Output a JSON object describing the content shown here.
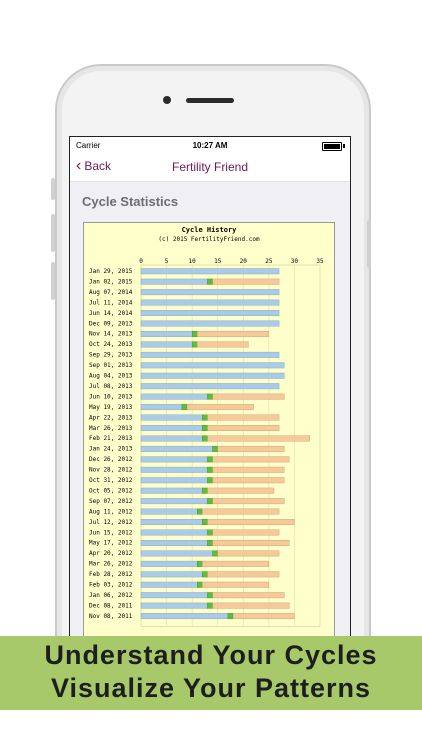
{
  "status_bar": {
    "carrier": "Carrier",
    "time": "10:27 AM"
  },
  "nav": {
    "back_label": "Back",
    "title": "Fertility Friend"
  },
  "section_heading": "Cycle Statistics",
  "chart_data": {
    "type": "bar",
    "title": "Cycle History",
    "subtitle": "(c) 2015 FertilityFriend.com",
    "x_ticks": [
      0,
      5,
      10,
      15,
      20,
      25,
      30,
      35
    ],
    "xlim": [
      0,
      35
    ],
    "colors": {
      "pre_ovulation": "#a9cbe8",
      "ovulation": "#5bbf3a",
      "post_ovulation": "#f5c99a",
      "background": "#ffffcc"
    },
    "cycles": [
      {
        "date": "Jan 29, 2015",
        "length": 27,
        "ovulation": null
      },
      {
        "date": "Jan 02, 2015",
        "length": 27,
        "ovulation": 13
      },
      {
        "date": "Aug 07, 2014",
        "length": 27,
        "ovulation": null
      },
      {
        "date": "Jul 11, 2014",
        "length": 27,
        "ovulation": null
      },
      {
        "date": "Jun 14, 2014",
        "length": 27,
        "ovulation": null
      },
      {
        "date": "Dec 09, 2013",
        "length": 27,
        "ovulation": null
      },
      {
        "date": "Nov 14, 2013",
        "length": 25,
        "ovulation": 10
      },
      {
        "date": "Oct 24, 2013",
        "length": 21,
        "ovulation": 10
      },
      {
        "date": "Sep 29, 2013",
        "length": 27,
        "ovulation": null
      },
      {
        "date": "Sep 01, 2013",
        "length": 28,
        "ovulation": null
      },
      {
        "date": "Aug 04, 2013",
        "length": 28,
        "ovulation": null
      },
      {
        "date": "Jul 08, 2013",
        "length": 27,
        "ovulation": null
      },
      {
        "date": "Jun 10, 2013",
        "length": 28,
        "ovulation": 13
      },
      {
        "date": "May 19, 2013",
        "length": 22,
        "ovulation": 8
      },
      {
        "date": "Apr 22, 2013",
        "length": 27,
        "ovulation": 12
      },
      {
        "date": "Mar 26, 2013",
        "length": 27,
        "ovulation": 12
      },
      {
        "date": "Feb 21, 2013",
        "length": 33,
        "ovulation": 12
      },
      {
        "date": "Jan 24, 2013",
        "length": 28,
        "ovulation": 14
      },
      {
        "date": "Dec 26, 2012",
        "length": 29,
        "ovulation": 13
      },
      {
        "date": "Nov 28, 2012",
        "length": 28,
        "ovulation": 13
      },
      {
        "date": "Oct 31, 2012",
        "length": 28,
        "ovulation": 13
      },
      {
        "date": "Oct 05, 2012",
        "length": 26,
        "ovulation": 12
      },
      {
        "date": "Sep 07, 2012",
        "length": 28,
        "ovulation": 13
      },
      {
        "date": "Aug 11, 2012",
        "length": 27,
        "ovulation": 11
      },
      {
        "date": "Jul 12, 2012",
        "length": 30,
        "ovulation": 12
      },
      {
        "date": "Jun 15, 2012",
        "length": 27,
        "ovulation": 13
      },
      {
        "date": "May 17, 2012",
        "length": 29,
        "ovulation": 13
      },
      {
        "date": "Apr 20, 2012",
        "length": 27,
        "ovulation": 14
      },
      {
        "date": "Mar 26, 2012",
        "length": 25,
        "ovulation": 11
      },
      {
        "date": "Feb 28, 2012",
        "length": 27,
        "ovulation": 12
      },
      {
        "date": "Feb 03, 2012",
        "length": 25,
        "ovulation": 11
      },
      {
        "date": "Jan 06, 2012",
        "length": 28,
        "ovulation": 13
      },
      {
        "date": "Dec 08, 2011",
        "length": 29,
        "ovulation": 13
      },
      {
        "date": "Nov 08, 2011",
        "length": 30,
        "ovulation": 17
      }
    ]
  },
  "caption": {
    "line1": "Understand Your Cycles",
    "line2": "Visualize Your Patterns"
  }
}
